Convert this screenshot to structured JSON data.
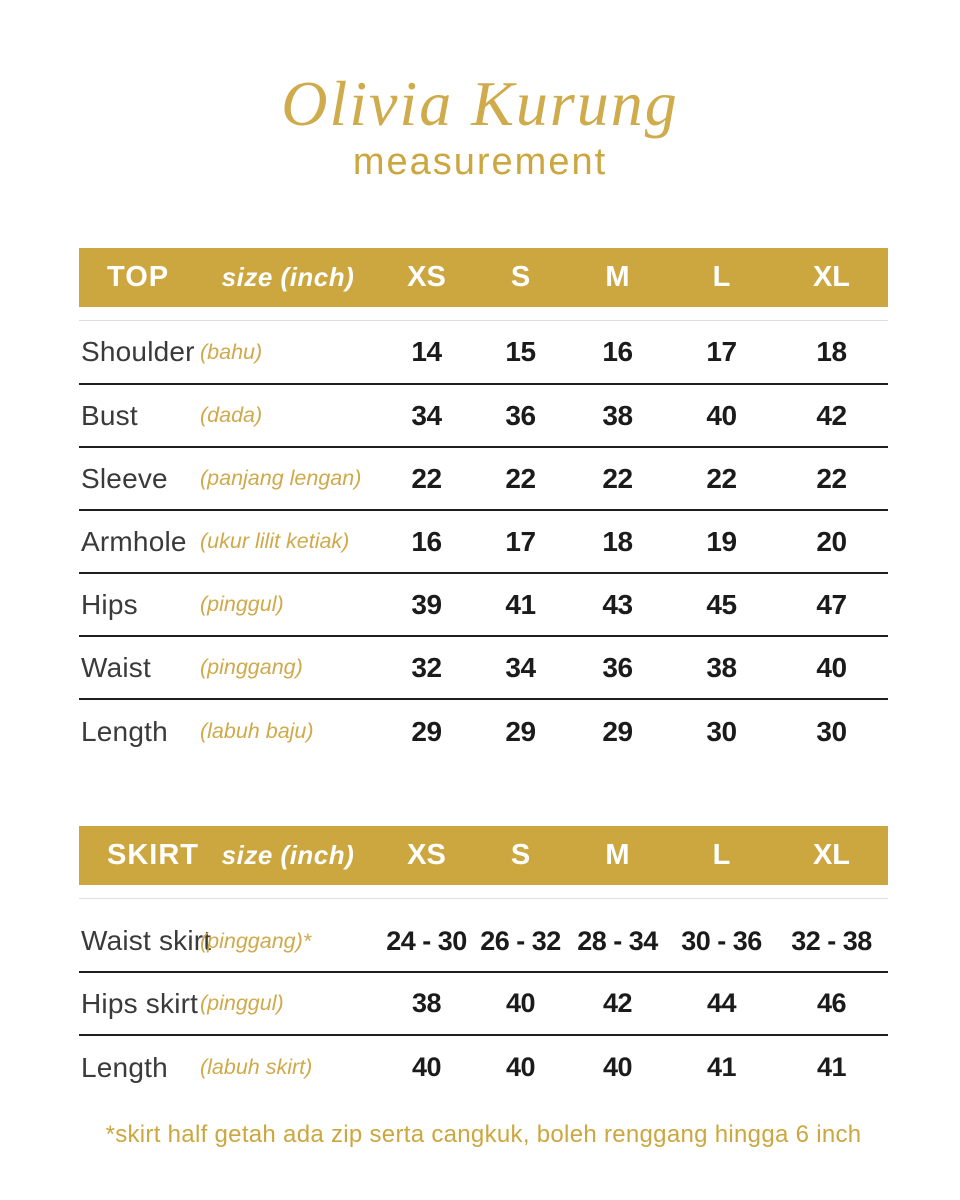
{
  "page": {
    "title": "Olivia Kurung",
    "subtitle": "measurement",
    "footnote": "*skirt half getah ada zip serta cangkuk, boleh renggang hingga 6 inch"
  },
  "colors": {
    "gold": "#CCA63E",
    "gold_title": "#CFAB4C",
    "gold_translation_text": "#CFA94A",
    "header_text": "#FFFFFF",
    "label_text": "#3A3A3A",
    "value_text": "#1B1B1B",
    "separator_line": "#1F1F1F",
    "faint_line": "#DDDDDD",
    "background": "#FFFFFF"
  },
  "top_table": {
    "name": "TOP",
    "unit_label": "size (inch)",
    "sizes": [
      "XS",
      "S",
      "M",
      "L",
      "XL"
    ],
    "rows": [
      {
        "label": "Shoulder",
        "malay": "(bahu)",
        "values": [
          "14",
          "15",
          "16",
          "17",
          "18"
        ]
      },
      {
        "label": "Bust",
        "malay": "(dada)",
        "values": [
          "34",
          "36",
          "38",
          "40",
          "42"
        ]
      },
      {
        "label": "Sleeve",
        "malay": "(panjang lengan)",
        "values": [
          "22",
          "22",
          "22",
          "22",
          "22"
        ]
      },
      {
        "label": "Armhole",
        "malay": "(ukur lilit ketiak)",
        "values": [
          "16",
          "17",
          "18",
          "19",
          "20"
        ]
      },
      {
        "label": "Hips",
        "malay": "(pinggul)",
        "values": [
          "39",
          "41",
          "43",
          "45",
          "47"
        ]
      },
      {
        "label": "Waist",
        "malay": "(pinggang)",
        "values": [
          "32",
          "34",
          "36",
          "38",
          "40"
        ]
      },
      {
        "label": "Length",
        "malay": "(labuh baju)",
        "values": [
          "29",
          "29",
          "29",
          "30",
          "30"
        ]
      }
    ]
  },
  "skirt_table": {
    "name": "SKIRT",
    "unit_label": "size (inch)",
    "sizes": [
      "XS",
      "S",
      "M",
      "L",
      "XL"
    ],
    "rows": [
      {
        "label": "Waist skirt",
        "malay": "(pinggang)*",
        "values": [
          "24 - 30",
          "26 - 32",
          "28 - 34",
          "30 - 36",
          "32 - 38"
        ]
      },
      {
        "label": "Hips skirt",
        "malay": "(pinggul)",
        "values": [
          "38",
          "40",
          "42",
          "44",
          "46"
        ]
      },
      {
        "label": "Length",
        "malay": "(labuh skirt)",
        "values": [
          "40",
          "40",
          "40",
          "41",
          "41"
        ]
      }
    ]
  }
}
